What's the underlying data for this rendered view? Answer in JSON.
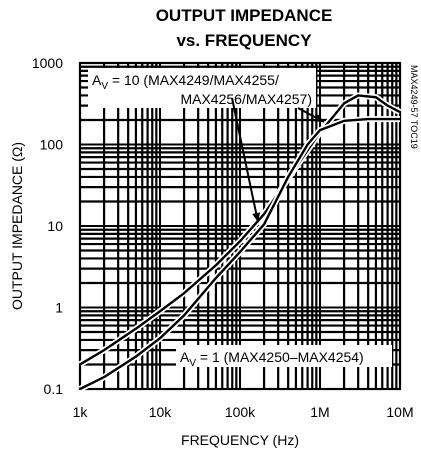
{
  "chart_data": {
    "type": "line",
    "title_line1": "OUTPUT IMPEDANCE",
    "title_line2": "vs. FREQUENCY",
    "xlabel": "FREQUENCY (Hz)",
    "ylabel": "OUTPUT IMPEDANCE (Ω)",
    "x_scale": "log",
    "y_scale": "log",
    "xlim": [
      1000,
      10000000
    ],
    "ylim": [
      0.1,
      1000
    ],
    "x_ticks": [
      {
        "value": 1000,
        "label": "1k"
      },
      {
        "value": 10000,
        "label": "10k"
      },
      {
        "value": 100000,
        "label": "100k"
      },
      {
        "value": 1000000,
        "label": "1M"
      },
      {
        "value": 10000000,
        "label": "10M"
      }
    ],
    "y_ticks": [
      {
        "value": 0.1,
        "label": "0.1"
      },
      {
        "value": 1,
        "label": "1"
      },
      {
        "value": 10,
        "label": "10"
      },
      {
        "value": 100,
        "label": "100"
      },
      {
        "value": 1000,
        "label": "1000"
      }
    ],
    "grid": true,
    "code_label": "MAX4249-57 TOC19",
    "annotations": [
      {
        "id": "av10",
        "line1": "A",
        "sub": "V",
        "text1": " = 10 (MAX4249/MAX4255/",
        "line2": "MAX4256/MAX4257)"
      },
      {
        "id": "av1",
        "text": "A",
        "sub": "V",
        "rest": " = 1 (MAX4250–MAX4254)"
      }
    ],
    "series": [
      {
        "key": "av10",
        "x": [
          1000,
          2000,
          5000,
          10000,
          20000,
          50000,
          100000,
          200000,
          400000,
          700000,
          1000000,
          2000000,
          3000000,
          5000000,
          7000000,
          10000000
        ],
        "y": [
          0.2,
          0.3,
          0.55,
          0.9,
          1.5,
          3.3,
          6.5,
          14,
          38,
          85,
          140,
          320,
          400,
          380,
          300,
          250
        ]
      },
      {
        "key": "av1",
        "x": [
          1000,
          2000,
          5000,
          10000,
          20000,
          50000,
          100000,
          200000,
          400000,
          700000,
          1000000,
          2000000,
          4000000,
          7000000,
          10000000
        ],
        "y": [
          0.1,
          0.14,
          0.25,
          0.42,
          0.8,
          2.3,
          4.8,
          10.5,
          40,
          100,
          150,
          195,
          205,
          205,
          205
        ]
      }
    ]
  }
}
